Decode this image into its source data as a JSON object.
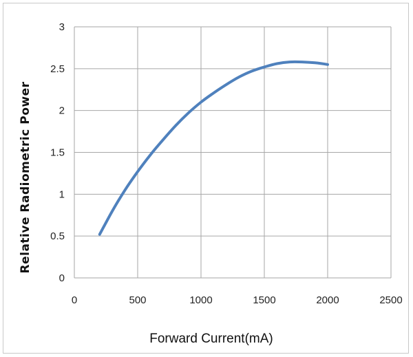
{
  "chart_data": {
    "type": "line",
    "title": "",
    "xlabel": "Forward Current(mA)",
    "ylabel": "Relative  Radiometric  Power",
    "xlim": [
      0,
      2500
    ],
    "ylim": [
      0,
      3
    ],
    "x_ticks": [
      0,
      500,
      1000,
      1500,
      2000,
      2500
    ],
    "y_ticks": [
      0,
      0.5,
      1,
      1.5,
      2,
      2.5,
      3
    ],
    "x_tick_labels": [
      "0",
      "500",
      "1000",
      "1500",
      "2000",
      "2500"
    ],
    "y_tick_labels": [
      "0",
      "0.5",
      "1",
      "1.5",
      "2",
      "2.5",
      "3"
    ],
    "grid": true,
    "legend": "none",
    "series": [
      {
        "color": "#4f81bd",
        "x": [
          200,
          300,
          400,
          500,
          600,
          700,
          800,
          900,
          1000,
          1100,
          1200,
          1300,
          1400,
          1500,
          1600,
          1700,
          1800,
          1900,
          2000
        ],
        "y": [
          0.52,
          0.8,
          1.05,
          1.27,
          1.47,
          1.65,
          1.82,
          1.97,
          2.1,
          2.21,
          2.31,
          2.4,
          2.47,
          2.52,
          2.56,
          2.58,
          2.58,
          2.57,
          2.55
        ]
      }
    ]
  }
}
